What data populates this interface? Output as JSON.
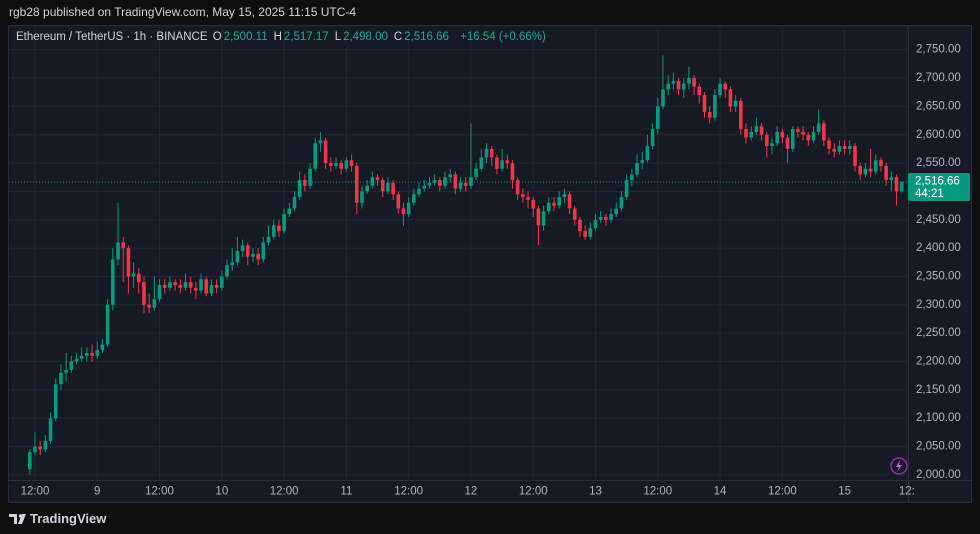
{
  "publisher": "rgb28 published on TradingView.com, May 15, 2025 11:15 UTC-4",
  "footer": "TradingView",
  "chart_data": {
    "type": "candlestick",
    "header": {
      "symbol": "Ethereum / TetherUS · 1h · BINANCE",
      "ohlc": [
        {
          "label": "O",
          "value": "2,500.11"
        },
        {
          "label": "H",
          "value": "2,517.17"
        },
        {
          "label": "L",
          "value": "2,498.00"
        },
        {
          "label": "C",
          "value": "2,516.66"
        }
      ],
      "change": "+16.54 (+0.66%)"
    },
    "up_color": "#089981",
    "down_color": "#f23645",
    "grid": true,
    "last_price": {
      "value": 2516.66,
      "label": "2,516.66"
    },
    "countdown": "44:21",
    "ylim": [
      1991,
      2790
    ],
    "yticks": [
      {
        "value": 2000,
        "label": "2,000.00"
      },
      {
        "value": 2050,
        "label": "2,050.00"
      },
      {
        "value": 2100,
        "label": "2,100.00"
      },
      {
        "value": 2150,
        "label": "2,150.00"
      },
      {
        "value": 2200,
        "label": "2,200.00"
      },
      {
        "value": 2250,
        "label": "2,250.00"
      },
      {
        "value": 2300,
        "label": "2,300.00"
      },
      {
        "value": 2350,
        "label": "2,350.00"
      },
      {
        "value": 2400,
        "label": "2,400.00"
      },
      {
        "value": 2450,
        "label": "2,450.00"
      },
      {
        "value": 2500,
        "label": "2,500.00"
      },
      {
        "value": 2550,
        "label": "2,550.00"
      },
      {
        "value": 2600,
        "label": "2,600.00"
      },
      {
        "value": 2650,
        "label": "2,650.00"
      },
      {
        "value": 2700,
        "label": "2,700.00"
      },
      {
        "value": 2750,
        "label": "2,750.00"
      }
    ],
    "categories": [
      null,
      "12:00",
      null,
      null,
      null,
      null,
      null,
      null,
      null,
      null,
      null,
      null,
      null,
      "9",
      null,
      null,
      null,
      null,
      null,
      null,
      null,
      null,
      null,
      null,
      null,
      "12:00",
      null,
      null,
      null,
      null,
      null,
      null,
      null,
      null,
      null,
      null,
      null,
      "10",
      null,
      null,
      null,
      null,
      null,
      null,
      null,
      null,
      null,
      null,
      null,
      "12:00",
      null,
      null,
      null,
      null,
      null,
      null,
      null,
      null,
      null,
      null,
      null,
      "11",
      null,
      null,
      null,
      null,
      null,
      null,
      null,
      null,
      null,
      null,
      null,
      "12:00",
      null,
      null,
      null,
      null,
      null,
      null,
      null,
      null,
      null,
      null,
      null,
      "12",
      null,
      null,
      null,
      null,
      null,
      null,
      null,
      null,
      null,
      null,
      null,
      "12:00",
      null,
      null,
      null,
      null,
      null,
      null,
      null,
      null,
      null,
      null,
      null,
      "13",
      null,
      null,
      null,
      null,
      null,
      null,
      null,
      null,
      null,
      null,
      null,
      "12:00",
      null,
      null,
      null,
      null,
      null,
      null,
      null,
      null,
      null,
      null,
      null,
      "14",
      null,
      null,
      null,
      null,
      null,
      null,
      null,
      null,
      null,
      null,
      null,
      "12:00",
      null,
      null,
      null,
      null,
      null,
      null,
      null,
      null,
      null,
      null,
      null,
      "15",
      null,
      null,
      null,
      null,
      null,
      null,
      null,
      null,
      null,
      null,
      null,
      "12:"
    ],
    "open": [
      2010,
      2040,
      2050,
      2045,
      2060,
      2100,
      2160,
      2180,
      2185,
      2200,
      2205,
      2210,
      2215,
      2210,
      2220,
      2230,
      2300,
      2380,
      2410,
      2400,
      2350,
      2355,
      2340,
      2300,
      2295,
      2310,
      2335,
      2330,
      2340,
      2335,
      2330,
      2340,
      2330,
      2325,
      2345,
      2320,
      2335,
      2330,
      2350,
      2370,
      2375,
      2395,
      2405,
      2385,
      2390,
      2380,
      2410,
      2420,
      2440,
      2430,
      2460,
      2470,
      2490,
      2520,
      2510,
      2540,
      2585,
      2590,
      2550,
      2545,
      2550,
      2540,
      2555,
      2545,
      2480,
      2500,
      2510,
      2525,
      2520,
      2500,
      2515,
      2495,
      2470,
      2460,
      2480,
      2495,
      2505,
      2510,
      2515,
      2520,
      2510,
      2525,
      2530,
      2505,
      2515,
      2510,
      2525,
      2540,
      2560,
      2575,
      2560,
      2540,
      2555,
      2550,
      2520,
      2495,
      2490,
      2485,
      2470,
      2440,
      2465,
      2480,
      2475,
      2490,
      2495,
      2470,
      2450,
      2430,
      2420,
      2435,
      2450,
      2455,
      2450,
      2460,
      2470,
      2490,
      2520,
      2530,
      2550,
      2555,
      2580,
      2610,
      2650,
      2680,
      2690,
      2695,
      2680,
      2690,
      2700,
      2685,
      2670,
      2640,
      2630,
      2670,
      2690,
      2680,
      2650,
      2660,
      2610,
      2595,
      2605,
      2615,
      2600,
      2580,
      2585,
      2605,
      2595,
      2575,
      2610,
      2605,
      2600,
      2590,
      2605,
      2620,
      2590,
      2575,
      2570,
      2580,
      2575,
      2580,
      2545,
      2530,
      2540,
      2535,
      2555,
      2545,
      2520,
      2525,
      2500.11,
      null
    ],
    "high": [
      2045,
      2075,
      2060,
      2070,
      2110,
      2170,
      2195,
      2215,
      2210,
      2215,
      2225,
      2225,
      2230,
      2235,
      2240,
      2310,
      2400,
      2480,
      2420,
      2405,
      2375,
      2365,
      2350,
      2320,
      2350,
      2345,
      2345,
      2350,
      2345,
      2345,
      2355,
      2350,
      2340,
      2355,
      2350,
      2345,
      2345,
      2360,
      2380,
      2400,
      2420,
      2415,
      2410,
      2400,
      2400,
      2420,
      2440,
      2450,
      2450,
      2470,
      2480,
      2500,
      2535,
      2530,
      2550,
      2595,
      2605,
      2595,
      2560,
      2560,
      2555,
      2560,
      2565,
      2550,
      2510,
      2520,
      2535,
      2530,
      2525,
      2525,
      2520,
      2500,
      2480,
      2490,
      2505,
      2515,
      2520,
      2525,
      2530,
      2525,
      2535,
      2540,
      2535,
      2525,
      2525,
      2620,
      2550,
      2575,
      2585,
      2580,
      2565,
      2575,
      2565,
      2555,
      2525,
      2505,
      2500,
      2490,
      2475,
      2475,
      2490,
      2490,
      2500,
      2505,
      2500,
      2475,
      2455,
      2440,
      2445,
      2460,
      2465,
      2460,
      2470,
      2480,
      2500,
      2530,
      2540,
      2565,
      2570,
      2600,
      2620,
      2665,
      2740,
      2705,
      2710,
      2700,
      2700,
      2720,
      2705,
      2690,
      2675,
      2650,
      2680,
      2700,
      2695,
      2685,
      2670,
      2665,
      2620,
      2615,
      2630,
      2620,
      2605,
      2595,
      2615,
      2610,
      2600,
      2615,
      2615,
      2615,
      2605,
      2615,
      2645,
      2625,
      2595,
      2585,
      2590,
      2590,
      2590,
      2585,
      2550,
      2550,
      2575,
      2565,
      2560,
      2550,
      2535,
      2530,
      2517.17,
      null
    ],
    "low": [
      2000,
      2035,
      2035,
      2040,
      2055,
      2095,
      2150,
      2165,
      2180,
      2195,
      2200,
      2200,
      2200,
      2205,
      2215,
      2225,
      2290,
      2370,
      2340,
      2320,
      2330,
      2320,
      2285,
      2285,
      2290,
      2305,
      2320,
      2325,
      2325,
      2320,
      2325,
      2320,
      2310,
      2320,
      2315,
      2315,
      2320,
      2325,
      2345,
      2360,
      2370,
      2385,
      2370,
      2375,
      2370,
      2375,
      2405,
      2415,
      2420,
      2425,
      2455,
      2465,
      2485,
      2500,
      2505,
      2535,
      2570,
      2540,
      2535,
      2540,
      2530,
      2535,
      2535,
      2460,
      2470,
      2495,
      2505,
      2510,
      2490,
      2495,
      2485,
      2460,
      2440,
      2455,
      2475,
      2490,
      2500,
      2505,
      2510,
      2500,
      2505,
      2515,
      2495,
      2500,
      2500,
      2505,
      2520,
      2535,
      2550,
      2545,
      2530,
      2535,
      2540,
      2505,
      2485,
      2480,
      2470,
      2455,
      2405,
      2430,
      2460,
      2465,
      2470,
      2480,
      2460,
      2440,
      2420,
      2415,
      2415,
      2430,
      2445,
      2440,
      2445,
      2455,
      2465,
      2485,
      2510,
      2525,
      2540,
      2550,
      2575,
      2600,
      2645,
      2670,
      2680,
      2670,
      2665,
      2680,
      2670,
      2655,
      2630,
      2620,
      2625,
      2665,
      2665,
      2640,
      2640,
      2600,
      2585,
      2590,
      2600,
      2590,
      2560,
      2565,
      2580,
      2585,
      2550,
      2570,
      2595,
      2590,
      2580,
      2585,
      2600,
      2580,
      2565,
      2560,
      2565,
      2565,
      2565,
      2535,
      2520,
      2525,
      2525,
      2530,
      2535,
      2510,
      2500,
      2475,
      2498,
      null
    ],
    "close": [
      2040,
      2050,
      2045,
      2060,
      2100,
      2160,
      2180,
      2185,
      2200,
      2205,
      2210,
      2215,
      2210,
      2220,
      2230,
      2300,
      2380,
      2410,
      2400,
      2350,
      2355,
      2340,
      2300,
      2295,
      2310,
      2335,
      2330,
      2340,
      2335,
      2330,
      2340,
      2330,
      2325,
      2345,
      2320,
      2335,
      2330,
      2350,
      2370,
      2375,
      2395,
      2405,
      2385,
      2390,
      2380,
      2410,
      2420,
      2440,
      2430,
      2460,
      2470,
      2490,
      2520,
      2510,
      2540,
      2585,
      2590,
      2550,
      2545,
      2550,
      2540,
      2555,
      2545,
      2480,
      2500,
      2510,
      2525,
      2520,
      2500,
      2515,
      2495,
      2470,
      2460,
      2480,
      2495,
      2505,
      2510,
      2515,
      2520,
      2510,
      2525,
      2530,
      2505,
      2515,
      2510,
      2525,
      2540,
      2560,
      2575,
      2560,
      2540,
      2555,
      2550,
      2520,
      2495,
      2490,
      2485,
      2470,
      2440,
      2465,
      2480,
      2475,
      2490,
      2495,
      2470,
      2450,
      2430,
      2420,
      2435,
      2450,
      2455,
      2450,
      2460,
      2470,
      2490,
      2520,
      2530,
      2550,
      2555,
      2580,
      2610,
      2650,
      2680,
      2690,
      2695,
      2680,
      2690,
      2700,
      2685,
      2670,
      2640,
      2630,
      2670,
      2690,
      2680,
      2650,
      2660,
      2610,
      2595,
      2605,
      2615,
      2600,
      2580,
      2585,
      2605,
      2595,
      2575,
      2610,
      2605,
      2600,
      2590,
      2605,
      2620,
      2590,
      2575,
      2570,
      2580,
      2575,
      2580,
      2545,
      2530,
      2540,
      2535,
      2555,
      2545,
      2520,
      2525,
      2500.11,
      2516.66,
      null
    ]
  }
}
